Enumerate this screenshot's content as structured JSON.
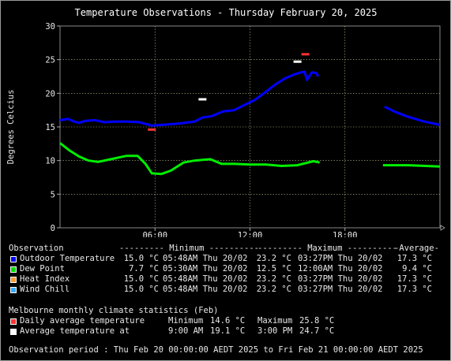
{
  "chart_data": {
    "type": "line",
    "title": "Temperature Observations - Thursday February 20, 2025",
    "ylabel": "Degrees Celcius",
    "xlabel": "",
    "ylim": [
      0,
      30
    ],
    "y_ticks": [
      "0",
      "5",
      "10",
      "15",
      "20",
      "25",
      "30"
    ],
    "x_ticks": [
      {
        "label": "06:00",
        "hour": 6
      },
      {
        "label": "12:00",
        "hour": 12
      },
      {
        "label": "18:00",
        "hour": 18
      }
    ],
    "xlim_hours": [
      0,
      24
    ],
    "grid": true,
    "series": [
      {
        "name": "Outdoor Temperature",
        "color": "#0000ff",
        "segments": [
          [
            [
              0,
              16.0
            ],
            [
              0.5,
              16.2
            ],
            [
              0.9,
              15.8
            ],
            [
              1.2,
              15.6
            ],
            [
              1.6,
              15.9
            ],
            [
              2.2,
              16.0
            ],
            [
              2.8,
              15.7
            ],
            [
              3.5,
              15.8
            ],
            [
              4.2,
              15.8
            ],
            [
              5.0,
              15.7
            ],
            [
              5.8,
              15.2
            ],
            [
              6.5,
              15.3
            ],
            [
              7.5,
              15.5
            ],
            [
              8.5,
              15.8
            ],
            [
              9.0,
              16.4
            ],
            [
              9.6,
              16.6
            ],
            [
              10.3,
              17.3
            ],
            [
              11.0,
              17.5
            ],
            [
              11.6,
              18.2
            ],
            [
              12.3,
              19.0
            ],
            [
              13.0,
              20.2
            ],
            [
              13.6,
              21.3
            ],
            [
              14.2,
              22.2
            ],
            [
              14.8,
              22.8
            ],
            [
              15.2,
              23.1
            ],
            [
              15.45,
              23.2
            ],
            [
              15.6,
              22.0
            ],
            [
              15.9,
              23.1
            ],
            [
              16.2,
              23.0
            ],
            [
              16.3,
              22.5
            ]
          ],
          [
            [
              20.5,
              18.0
            ],
            [
              21.2,
              17.2
            ],
            [
              22.0,
              16.5
            ],
            [
              23.0,
              15.8
            ],
            [
              24.0,
              15.3
            ]
          ]
        ]
      },
      {
        "name": "Dew Point",
        "color": "#00ee00",
        "segments": [
          [
            [
              0,
              12.6
            ],
            [
              0.6,
              11.5
            ],
            [
              1.2,
              10.6
            ],
            [
              1.8,
              10.0
            ],
            [
              2.4,
              9.8
            ],
            [
              3.2,
              10.2
            ],
            [
              4.2,
              10.7
            ],
            [
              4.9,
              10.7
            ],
            [
              5.4,
              9.5
            ],
            [
              5.8,
              8.1
            ],
            [
              6.4,
              8.0
            ],
            [
              7.0,
              8.5
            ],
            [
              7.8,
              9.7
            ],
            [
              8.5,
              10.0
            ],
            [
              9.5,
              10.2
            ],
            [
              10.2,
              9.5
            ],
            [
              11.0,
              9.5
            ],
            [
              12.0,
              9.4
            ],
            [
              13.0,
              9.4
            ],
            [
              14.0,
              9.2
            ],
            [
              15.0,
              9.3
            ],
            [
              16.0,
              9.9
            ],
            [
              16.4,
              9.7
            ]
          ],
          [
            [
              20.4,
              9.3
            ],
            [
              22.0,
              9.3
            ],
            [
              24.0,
              9.1
            ]
          ]
        ]
      }
    ],
    "markers": [
      {
        "name": "Daily average temperature minimum",
        "color": "#ff3333",
        "hour": 5.8,
        "value": 14.6
      },
      {
        "name": "Daily average temperature maximum",
        "color": "#ff3333",
        "hour": 15.5,
        "value": 25.8
      },
      {
        "name": "Average temperature minimum",
        "color": "#ffffff",
        "hour": 9.0,
        "value": 19.1
      },
      {
        "name": "Average temperature maximum",
        "color": "#ffffff",
        "hour": 15.0,
        "value": 24.7
      }
    ]
  },
  "legend": {
    "header": {
      "observation": "Observation",
      "minimum": "--------- Minimum ----------",
      "maximum": "--------- Maximum ----------",
      "average": "-Average-"
    },
    "rows": [
      {
        "label": "Outdoor Temperature",
        "color": "#0000ff",
        "min": "15.0 °C",
        "min_time": "05:48AM Thu 20/02",
        "max": "23.2 °C",
        "max_time": "03:27PM Thu 20/02",
        "avg": "17.3 °C"
      },
      {
        "label": "Dew Point",
        "color": "#00dd00",
        "min": "7.7 °C",
        "min_time": "05:30AM Thu 20/02",
        "max": "12.5 °C",
        "max_time": "12:00AM Thu 20/02",
        "avg": "9.4 °C"
      },
      {
        "label": "Heat Index",
        "color": "#ff9933",
        "min": "15.0 °C",
        "min_time": "05:48AM Thu 20/02",
        "max": "23.2 °C",
        "max_time": "03:27PM Thu 20/02",
        "avg": "17.3 °C"
      },
      {
        "label": "Wind Chill",
        "color": "#33aaff",
        "min": "15.0 °C",
        "min_time": "05:48AM Thu 20/02",
        "max": "23.2 °C",
        "max_time": "03:27PM Thu 20/02",
        "avg": "17.3 °C"
      }
    ]
  },
  "climate": {
    "title": "Melbourne monthly climate statistics (Feb)",
    "rows": [
      {
        "label": "Daily average temperature",
        "color": "#ff3333",
        "min_label": "Minimum",
        "min": "14.6 °C",
        "max_label": "Maximum",
        "max": "25.8 °C"
      },
      {
        "label": "Average temperature at",
        "color": "#ffffff",
        "min_label": "9:00 AM",
        "min": "19.1 °C",
        "max_label": "3:00 PM",
        "max": "24.7 °C"
      }
    ]
  },
  "footer": "Observation period : Thu Feb 20 00:00:00 AEDT 2025 to Fri Feb 21 00:00:00 AEDT 2025"
}
